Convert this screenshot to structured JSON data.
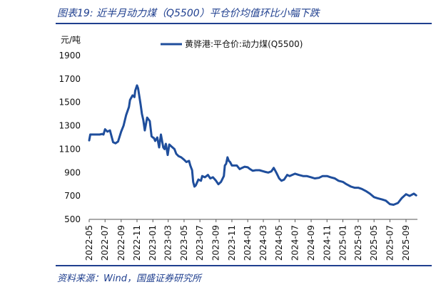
{
  "figure": {
    "title": "图表19:  近半月动力煤（Q5500）平仓价均值环比小幅下跌",
    "unit": "元/吨",
    "source": "资料来源：Wind，国盛证券研究所",
    "line_color": "#1f4e9c",
    "accent_color": "#1f3f8f"
  },
  "chart_data": {
    "type": "line",
    "title": "",
    "xlabel": "",
    "ylabel": "元/吨",
    "ylim": [
      500,
      1900
    ],
    "yticks": [
      500,
      700,
      900,
      1100,
      1300,
      1500,
      1700,
      1900
    ],
    "xlim": [
      "2022-05-01",
      "2025-10-15"
    ],
    "xticks": [
      "2022-05",
      "2022-07",
      "2022-09",
      "2022-11",
      "2023-01",
      "2023-03",
      "2023-05",
      "2023-07",
      "2023-09",
      "2023-11",
      "2024-01",
      "2024-03",
      "2024-05",
      "2024-07",
      "2024-09",
      "2024-11",
      "2025-01",
      "2025-03",
      "2025-05",
      "2025-07",
      "2025-09"
    ],
    "grid": false,
    "legend_position": "top-center",
    "series": [
      {
        "name": "黄骅港:平仓价:动力煤(Q5500)",
        "color": "#1f4e9c",
        "x": [
          "2022-05-01",
          "2022-05-05",
          "2022-05-20",
          "2022-06-10",
          "2022-06-20",
          "2022-06-25",
          "2022-07-01",
          "2022-07-10",
          "2022-07-20",
          "2022-08-01",
          "2022-08-10",
          "2022-08-20",
          "2022-09-01",
          "2022-09-10",
          "2022-09-20",
          "2022-10-01",
          "2022-10-05",
          "2022-10-15",
          "2022-10-22",
          "2022-10-25",
          "2022-11-01",
          "2022-11-05",
          "2022-11-10",
          "2022-11-15",
          "2022-11-20",
          "2022-11-25",
          "2022-12-01",
          "2022-12-10",
          "2022-12-20",
          "2022-12-27",
          "2023-01-01",
          "2023-01-05",
          "2023-01-10",
          "2023-01-18",
          "2023-01-25",
          "2023-02-01",
          "2023-02-10",
          "2023-02-15",
          "2023-02-20",
          "2023-02-27",
          "2023-03-05",
          "2023-03-15",
          "2023-03-25",
          "2023-04-01",
          "2023-04-10",
          "2023-04-20",
          "2023-05-01",
          "2023-05-10",
          "2023-05-20",
          "2023-05-25",
          "2023-06-01",
          "2023-06-05",
          "2023-06-10",
          "2023-06-15",
          "2023-06-25",
          "2023-07-05",
          "2023-07-10",
          "2023-07-20",
          "2023-08-01",
          "2023-08-10",
          "2023-08-20",
          "2023-09-01",
          "2023-09-10",
          "2023-09-20",
          "2023-10-01",
          "2023-10-05",
          "2023-10-10",
          "2023-10-15",
          "2023-10-20",
          "2023-10-25",
          "2023-11-01",
          "2023-11-10",
          "2023-11-20",
          "2023-12-01",
          "2023-12-10",
          "2023-12-20",
          "2024-01-01",
          "2024-01-10",
          "2024-01-20",
          "2024-02-01",
          "2024-02-15",
          "2024-03-01",
          "2024-03-10",
          "2024-03-20",
          "2024-04-01",
          "2024-04-10",
          "2024-04-20",
          "2024-05-01",
          "2024-05-10",
          "2024-05-20",
          "2024-06-01",
          "2024-06-10",
          "2024-06-20",
          "2024-07-01",
          "2024-07-15",
          "2024-08-01",
          "2024-08-15",
          "2024-09-01",
          "2024-09-15",
          "2024-10-01",
          "2024-10-15",
          "2024-11-01",
          "2024-11-15",
          "2024-12-01",
          "2024-12-15",
          "2025-01-01",
          "2025-01-15",
          "2025-02-01",
          "2025-02-15",
          "2025-03-01",
          "2025-03-15",
          "2025-04-01",
          "2025-04-15",
          "2025-05-01",
          "2025-05-15",
          "2025-06-01",
          "2025-06-15",
          "2025-07-01",
          "2025-07-15",
          "2025-08-01",
          "2025-08-15",
          "2025-09-01",
          "2025-09-15",
          "2025-10-01",
          "2025-10-10"
        ],
        "values": [
          1175,
          1225,
          1225,
          1225,
          1230,
          1225,
          1270,
          1250,
          1260,
          1160,
          1150,
          1165,
          1250,
          1300,
          1390,
          1460,
          1520,
          1560,
          1545,
          1600,
          1645,
          1620,
          1550,
          1480,
          1400,
          1350,
          1260,
          1370,
          1340,
          1210,
          1200,
          1195,
          1170,
          1200,
          1115,
          1225,
          1115,
          1100,
          1145,
          1050,
          1140,
          1120,
          1100,
          1060,
          1040,
          1030,
          1010,
          990,
          1000,
          960,
          920,
          820,
          780,
          790,
          840,
          830,
          870,
          860,
          880,
          850,
          860,
          830,
          800,
          820,
          870,
          960,
          975,
          1030,
          1000,
          990,
          960,
          960,
          960,
          930,
          940,
          950,
          945,
          930,
          915,
          920,
          920,
          910,
          905,
          900,
          910,
          940,
          900,
          850,
          830,
          840,
          880,
          870,
          880,
          890,
          880,
          870,
          870,
          860,
          850,
          855,
          870,
          870,
          860,
          850,
          830,
          820,
          800,
          780,
          770,
          770,
          760,
          740,
          720,
          690,
          680,
          670,
          660,
          630,
          625,
          640,
          680,
          715,
          700,
          720,
          705
        ]
      }
    ]
  }
}
